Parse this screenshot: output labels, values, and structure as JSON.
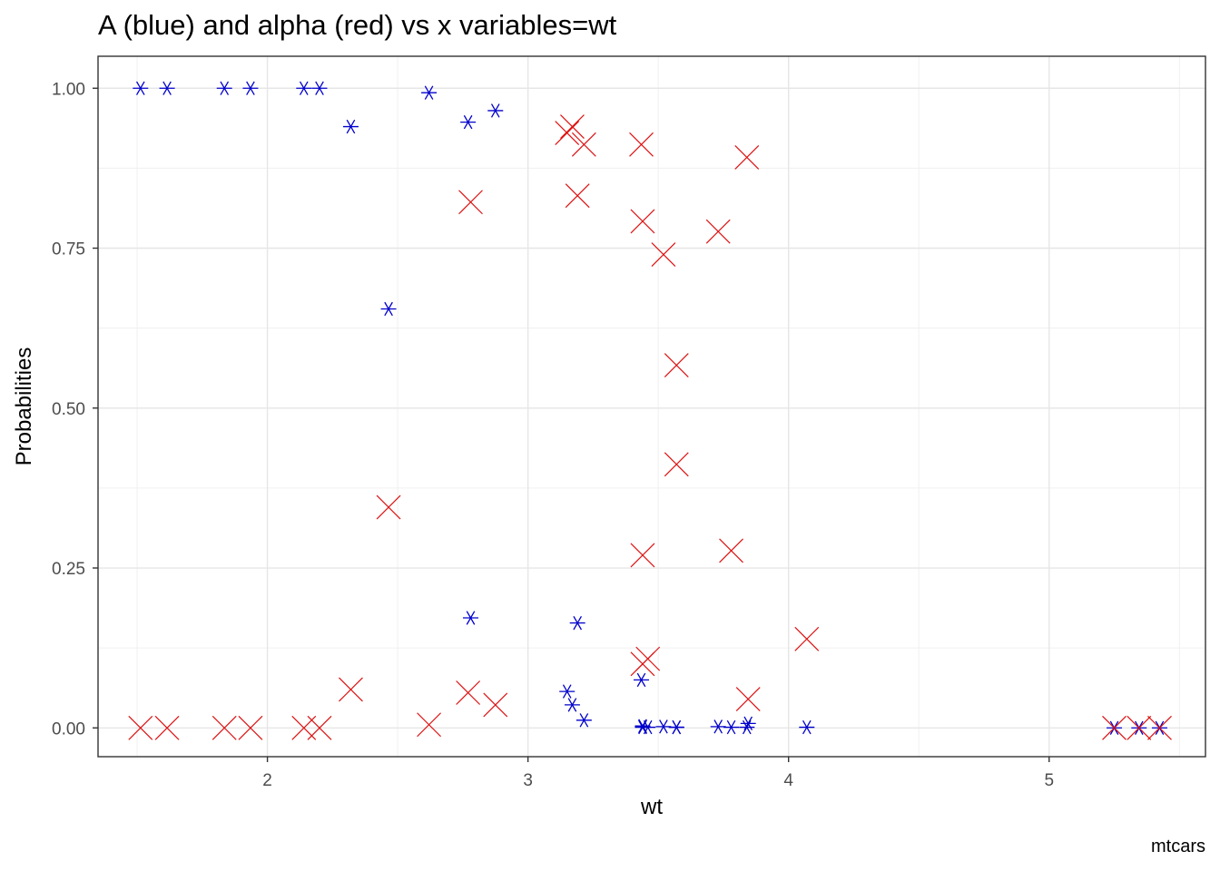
{
  "chart_data": {
    "type": "scatter",
    "title": "A (blue) and alpha (red) vs x variables=wt",
    "xlabel": "wt",
    "ylabel": "Probabilities",
    "caption": "mtcars",
    "xlim": [
      1.35,
      5.6
    ],
    "ylim": [
      -0.045,
      1.05
    ],
    "xticks": [
      2,
      3,
      4,
      5
    ],
    "xtick_labels": [
      "2",
      "3",
      "4",
      "5"
    ],
    "yticks": [
      0,
      0.25,
      0.5,
      0.75,
      1
    ],
    "ytick_labels": [
      "0.00",
      "0.25",
      "0.50",
      "0.75",
      "1.00"
    ],
    "grid": true,
    "legend": "none",
    "series": [
      {
        "color": "#0000cc",
        "marker": "asterisk",
        "points": [
          [
            1.513,
            1.0
          ],
          [
            1.615,
            1.0
          ],
          [
            1.835,
            1.0
          ],
          [
            1.935,
            1.0
          ],
          [
            2.14,
            1.0
          ],
          [
            2.2,
            1.0
          ],
          [
            2.32,
            0.94
          ],
          [
            2.465,
            0.655
          ],
          [
            2.62,
            0.993
          ],
          [
            2.77,
            0.947
          ],
          [
            2.78,
            0.172
          ],
          [
            2.875,
            0.965
          ],
          [
            3.15,
            0.057
          ],
          [
            3.17,
            0.036
          ],
          [
            3.19,
            0.164
          ],
          [
            3.215,
            0.012
          ],
          [
            3.435,
            0.075
          ],
          [
            3.44,
            0.003
          ],
          [
            3.44,
            0.001
          ],
          [
            3.44,
            0.002
          ],
          [
            3.46,
            0.001
          ],
          [
            3.52,
            0.002
          ],
          [
            3.57,
            0.001
          ],
          [
            3.57,
            0.001
          ],
          [
            3.73,
            0.002
          ],
          [
            3.78,
            0.001
          ],
          [
            3.84,
            0.001
          ],
          [
            3.845,
            0.007
          ],
          [
            4.07,
            0.001
          ],
          [
            5.25,
            0.0
          ],
          [
            5.345,
            0.0
          ],
          [
            5.424,
            0.0
          ]
        ]
      },
      {
        "color": "#dd1111",
        "marker": "cross",
        "points": [
          [
            1.513,
            0.0
          ],
          [
            1.615,
            0.0
          ],
          [
            1.835,
            0.0
          ],
          [
            1.935,
            0.0
          ],
          [
            2.14,
            0.0
          ],
          [
            2.2,
            0.0
          ],
          [
            2.32,
            0.06
          ],
          [
            2.465,
            0.345
          ],
          [
            2.62,
            0.005
          ],
          [
            2.77,
            0.055
          ],
          [
            2.78,
            0.822
          ],
          [
            2.875,
            0.036
          ],
          [
            3.15,
            0.93
          ],
          [
            3.17,
            0.94
          ],
          [
            3.19,
            0.832
          ],
          [
            3.215,
            0.912
          ],
          [
            3.435,
            0.912
          ],
          [
            3.44,
            0.792
          ],
          [
            3.44,
            0.27
          ],
          [
            3.44,
            0.1
          ],
          [
            3.46,
            0.108
          ],
          [
            3.52,
            0.74
          ],
          [
            3.57,
            0.567
          ],
          [
            3.57,
            0.412
          ],
          [
            3.73,
            0.776
          ],
          [
            3.78,
            0.277
          ],
          [
            3.84,
            0.892
          ],
          [
            3.845,
            0.045
          ],
          [
            4.07,
            0.139
          ],
          [
            5.25,
            0.0
          ],
          [
            5.345,
            0.0
          ],
          [
            5.424,
            0.0
          ]
        ]
      }
    ]
  }
}
